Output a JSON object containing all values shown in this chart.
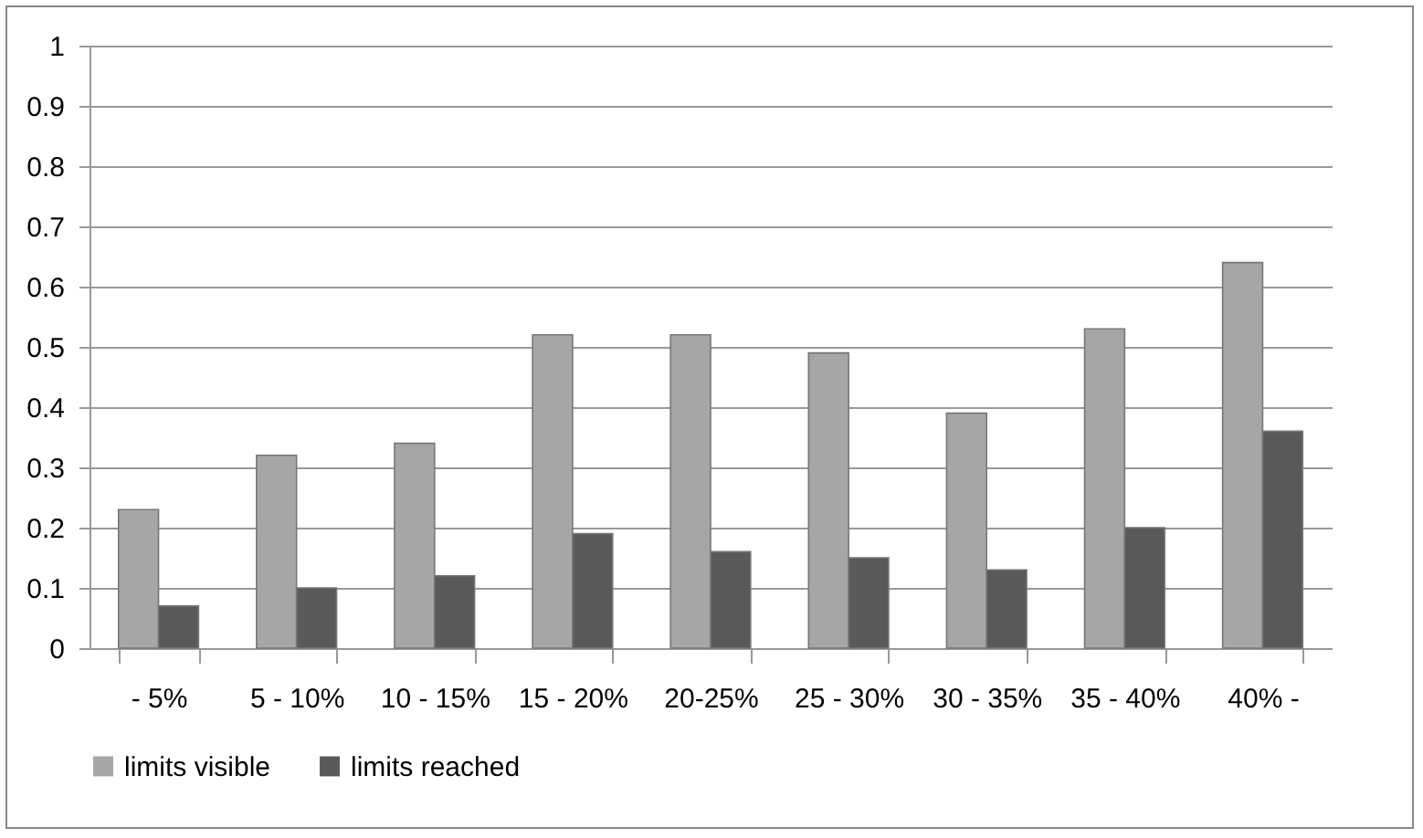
{
  "chart_data": {
    "type": "bar",
    "categories": [
      "- 5%",
      "5 - 10%",
      "10 - 15%",
      "15 - 20%",
      "20-25%",
      "25 - 30%",
      "30 - 35%",
      "35 - 40%",
      "40% -"
    ],
    "series": [
      {
        "name": "limits visible",
        "color": "#a6a6a6",
        "values": [
          0.23,
          0.32,
          0.34,
          0.52,
          0.52,
          0.49,
          0.39,
          0.53,
          0.64
        ]
      },
      {
        "name": "limits reached",
        "color": "#595959",
        "values": [
          0.07,
          0.1,
          0.12,
          0.19,
          0.16,
          0.15,
          0.13,
          0.2,
          0.36
        ]
      }
    ],
    "ylim": [
      0,
      1
    ],
    "yticks": [
      0,
      0.1,
      0.2,
      0.3,
      0.4,
      0.5,
      0.6,
      0.7,
      0.8,
      0.9,
      1
    ],
    "grid": "y",
    "legend": "bottom"
  }
}
